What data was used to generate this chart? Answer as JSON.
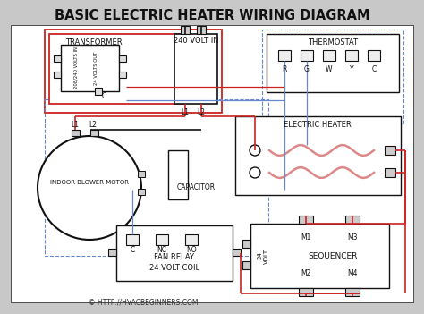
{
  "title": "BASIC ELECTRIC HEATER WIRING DIAGRAM",
  "bg_color": "#c8c8c8",
  "diagram_bg": "#ffffff",
  "title_fontsize": 10.5,
  "title_fontweight": "bold",
  "red": "#cc2222",
  "blk": "#111111",
  "blu": "#6688cc",
  "copyright": "© HTTP://HVACBEGINNERS.COM",
  "thermostat_labels": [
    "R",
    "G",
    "W",
    "Y",
    "C"
  ],
  "relay_labels": [
    "C",
    "NC",
    "NO"
  ],
  "seq_top_labels": [
    "M1",
    "M3"
  ],
  "seq_bot_labels": [
    "M2",
    "M4"
  ]
}
